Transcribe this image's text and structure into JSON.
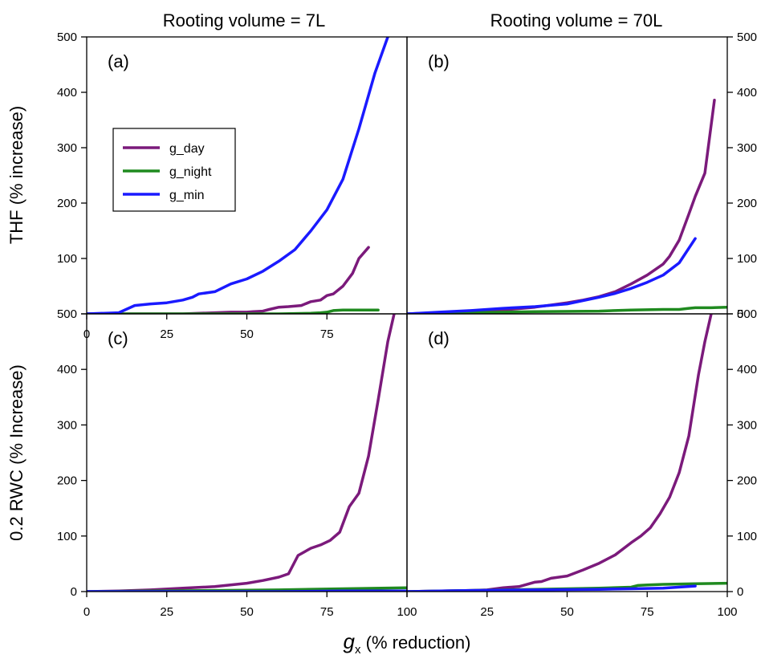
{
  "figure": {
    "col_titles": [
      "Rooting volume = 7L",
      "Rooting volume = 70L"
    ],
    "ylabel_top": "THF (% increase)",
    "ylabel_bottom": "0.2 RWC (% Increase)",
    "xlabel_main": "g",
    "xlabel_sub": "x",
    "xlabel_rest": " (% reduction)"
  },
  "legend": {
    "placement": "inside panel (a), upper-left",
    "entries": [
      {
        "name": "g_day",
        "color": "#7b1a7b"
      },
      {
        "name": "g_night",
        "color": "#1f8a1f"
      },
      {
        "name": "g_min",
        "color": "#1a1aff"
      }
    ]
  },
  "chart_data": [
    {
      "type": "line",
      "panel": "(a)",
      "xlim": [
        0,
        100
      ],
      "ylim": [
        0,
        500
      ],
      "xticks": [
        "0",
        "25",
        "50",
        "75",
        ""
      ],
      "yticks_left": [
        "",
        "100",
        "200",
        "300",
        "400",
        "500"
      ],
      "yticks_right": [],
      "series": [
        {
          "name": "g_day",
          "x": [
            0,
            10,
            20,
            30,
            40,
            45,
            50,
            52,
            55,
            57,
            60,
            63,
            67,
            70,
            73,
            75,
            77,
            80,
            83,
            85,
            88
          ],
          "y": [
            0,
            0,
            0,
            0,
            2,
            3,
            3,
            4,
            5,
            8,
            12,
            13,
            15,
            22,
            25,
            33,
            36,
            50,
            73,
            100,
            120
          ]
        },
        {
          "name": "g_night",
          "x": [
            0,
            20,
            40,
            60,
            70,
            73,
            75,
            77,
            80,
            85,
            90,
            91
          ],
          "y": [
            0,
            0,
            0,
            0,
            1,
            2,
            3,
            6,
            7,
            7,
            7,
            7
          ]
        },
        {
          "name": "g_min",
          "x": [
            0,
            10,
            15,
            20,
            25,
            30,
            33,
            35,
            40,
            45,
            50,
            55,
            60,
            65,
            70,
            75,
            80,
            85,
            90,
            94
          ],
          "y": [
            0,
            2,
            15,
            18,
            20,
            25,
            30,
            36,
            40,
            54,
            63,
            77,
            95,
            116,
            150,
            188,
            243,
            334,
            435,
            500
          ]
        }
      ]
    },
    {
      "type": "line",
      "panel": "(b)",
      "xlim": [
        0,
        100
      ],
      "ylim": [
        0,
        500
      ],
      "xticks": [],
      "yticks_left": [],
      "yticks_right": [
        "0",
        "100",
        "200",
        "300",
        "400",
        "500"
      ],
      "series": [
        {
          "name": "g_day",
          "x": [
            0,
            10,
            20,
            30,
            40,
            50,
            55,
            60,
            65,
            70,
            75,
            80,
            82,
            85,
            88,
            90,
            93,
            96
          ],
          "y": [
            0,
            2,
            4,
            7,
            12,
            20,
            25,
            31,
            40,
            54,
            70,
            90,
            104,
            133,
            180,
            212,
            254,
            386
          ]
        },
        {
          "name": "g_night",
          "x": [
            0,
            20,
            40,
            60,
            70,
            80,
            85,
            88,
            90,
            95,
            100
          ],
          "y": [
            0,
            2,
            4,
            5,
            7,
            8,
            8,
            10,
            11,
            11,
            12
          ]
        },
        {
          "name": "g_min",
          "x": [
            0,
            10,
            20,
            30,
            40,
            50,
            60,
            65,
            70,
            75,
            80,
            85,
            90
          ],
          "y": [
            0,
            3,
            6,
            10,
            13,
            18,
            30,
            37,
            46,
            57,
            70,
            92,
            136
          ]
        }
      ]
    },
    {
      "type": "line",
      "panel": "(c)",
      "xlim": [
        0,
        100
      ],
      "ylim": [
        0,
        500
      ],
      "xticks": [
        "0",
        "25",
        "50",
        "75",
        "100"
      ],
      "yticks_left": [
        "0",
        "100",
        "200",
        "300",
        "400",
        "500"
      ],
      "yticks_right": [],
      "series": [
        {
          "name": "g_day",
          "x": [
            0,
            10,
            20,
            30,
            40,
            50,
            55,
            60,
            63,
            66,
            70,
            73,
            76,
            79,
            82,
            85,
            88,
            91,
            94,
            96
          ],
          "y": [
            0,
            1,
            3,
            6,
            9,
            15,
            20,
            26,
            32,
            65,
            78,
            84,
            92,
            107,
            153,
            177,
            244,
            345,
            450,
            500
          ]
        },
        {
          "name": "g_night",
          "x": [
            0,
            20,
            40,
            60,
            80,
            100
          ],
          "y": [
            0,
            1,
            2,
            3,
            5,
            7
          ]
        },
        {
          "name": "g_min",
          "x": [
            0,
            20,
            40,
            60,
            80,
            100
          ],
          "y": [
            0,
            0,
            0,
            0,
            1,
            1
          ]
        }
      ]
    },
    {
      "type": "line",
      "panel": "(d)",
      "xlim": [
        0,
        100
      ],
      "ylim": [
        0,
        500
      ],
      "xticks": [
        "",
        "25",
        "50",
        "75",
        "100"
      ],
      "yticks_left": [],
      "yticks_right": [
        "0",
        "100",
        "200",
        "300",
        "400",
        "500"
      ],
      "series": [
        {
          "name": "g_day",
          "x": [
            0,
            10,
            20,
            25,
            30,
            35,
            40,
            42,
            45,
            50,
            55,
            60,
            65,
            70,
            73,
            76,
            79,
            82,
            85,
            88,
            91,
            93,
            95
          ],
          "y": [
            0,
            1,
            2,
            3,
            7,
            9,
            17,
            18,
            24,
            28,
            39,
            51,
            66,
            88,
            100,
            115,
            140,
            170,
            214,
            280,
            390,
            450,
            500
          ]
        },
        {
          "name": "g_night",
          "x": [
            0,
            20,
            40,
            60,
            70,
            72,
            75,
            80,
            90,
            100
          ],
          "y": [
            0,
            2,
            4,
            6,
            8,
            11,
            12,
            13,
            14,
            15
          ]
        },
        {
          "name": "g_min",
          "x": [
            0,
            20,
            40,
            60,
            70,
            80,
            90
          ],
          "y": [
            0,
            2,
            3,
            4,
            5,
            6,
            10
          ]
        }
      ]
    }
  ]
}
